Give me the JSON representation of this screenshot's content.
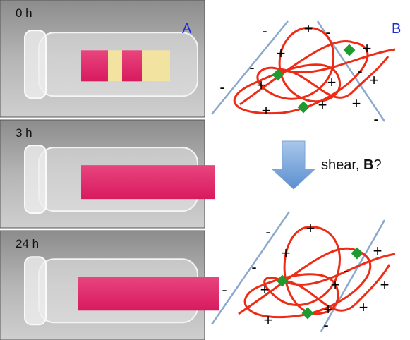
{
  "photos": {
    "labels": [
      "0 h",
      "3 h",
      "24 h"
    ],
    "panel_label": "A"
  },
  "diagram": {
    "panel_label": "B",
    "top_signs": [
      "-",
      "+",
      "-",
      "+",
      "-",
      "+",
      "-",
      "+",
      "-",
      "+",
      "+",
      "+",
      "+",
      "+",
      "-"
    ],
    "bottom_signs": [
      "-",
      "+",
      "+",
      "-",
      "+",
      "-",
      "-",
      "+",
      "+",
      "+",
      "+",
      "+",
      "+",
      "-"
    ],
    "arrow_label": {
      "text": "shear, ",
      "bold": "B",
      "tail": "?"
    }
  }
}
